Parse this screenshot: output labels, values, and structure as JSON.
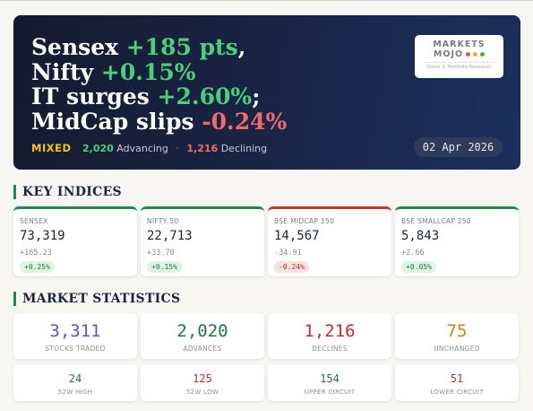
{
  "hero": {
    "headline": [
      {
        "text": "Sensex ",
        "hl": "+185 pts",
        "tail": ",",
        "dir": "up"
      },
      {
        "text": "Nifty ",
        "hl": "+0.15%",
        "tail": "",
        "dir": "up"
      },
      {
        "text": "IT surges ",
        "hl": "+2.60%",
        "tail": ";",
        "dir": "up"
      },
      {
        "text": "MidCap slips ",
        "hl": "-0.24%",
        "tail": "",
        "dir": "down"
      }
    ],
    "logo": {
      "line1": "MARKETS",
      "line2": "MOJO",
      "subtitle": "Stock & Portfolio Research",
      "dot_colors": [
        "#e8554e",
        "#f2a93b",
        "#3cb55a"
      ]
    },
    "sentiment": {
      "mood": "MIXED",
      "advancing_count": "2,020",
      "advancing_label": "Advancing",
      "separator": "·",
      "declining_count": "1,216",
      "declining_label": "Declining"
    },
    "date": "02 Apr 2026"
  },
  "sections": {
    "indices_title": "KEY INDICES",
    "stats_title": "MARKET STATISTICS"
  },
  "indices": [
    {
      "name": "SENSEX",
      "value": "73,319",
      "change": "+185.23",
      "pct": "+0.25%",
      "dir": "pos"
    },
    {
      "name": "NIFTY 50",
      "value": "22,713",
      "change": "+33.70",
      "pct": "+0.15%",
      "dir": "pos"
    },
    {
      "name": "BSE MIDCAP 150",
      "value": "14,567",
      "change": "-34.91",
      "pct": "-0.24%",
      "dir": "neg"
    },
    {
      "name": "BSE SMALLCAP 250",
      "value": "5,843",
      "change": "+2.66",
      "pct": "+0.05%",
      "dir": "pos"
    }
  ],
  "stats_primary": [
    {
      "value": "3,311",
      "label": "STOCKS TRADED",
      "color": "#5b55c9"
    },
    {
      "value": "2,020",
      "label": "ADVANCES",
      "color": "#1f7a42"
    },
    {
      "value": "1,216",
      "label": "DECLINES",
      "color": "#b83227"
    },
    {
      "value": "75",
      "label": "UNCHANGED",
      "color": "#d97b1e"
    }
  ],
  "stats_secondary": [
    {
      "value": "24",
      "label": "52W HIGH",
      "color": "#1f7a42"
    },
    {
      "value": "125",
      "label": "52W LOW",
      "color": "#b83227"
    },
    {
      "value": "154",
      "label": "UPPER CIRCUIT",
      "color": "#1f7a42"
    },
    {
      "value": "51",
      "label": "LOWER CIRCUIT",
      "color": "#b83227"
    }
  ],
  "colors": {
    "up": "#4ad07a",
    "down": "#ef6b6b",
    "accent_green": "#1f8a4c",
    "accent_red": "#c0392b",
    "mood": "#f2c21b",
    "hero_bg": "#1a2548"
  }
}
